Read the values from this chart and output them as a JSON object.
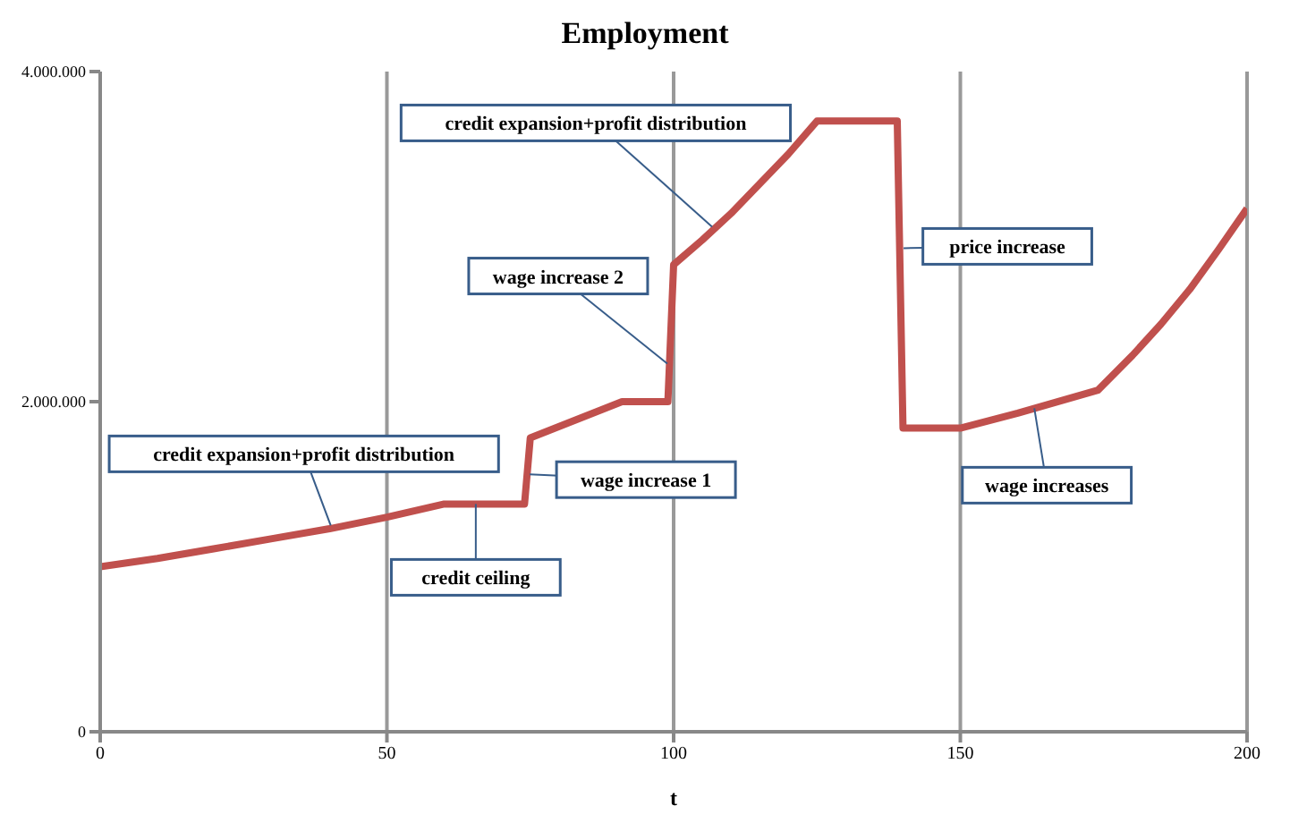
{
  "chart_data": {
    "type": "line",
    "title": "Employment",
    "xlabel": "t",
    "x": [
      0,
      10,
      20,
      30,
      40,
      50,
      60,
      74,
      75,
      91,
      99,
      100,
      105,
      110,
      115,
      120,
      125,
      139,
      140,
      150,
      160,
      174,
      180,
      185,
      190,
      195,
      200
    ],
    "series": [
      {
        "color": "#c0504d",
        "values": [
          1000000,
          1050000,
          1110000,
          1170000,
          1230000,
          1300000,
          1380000,
          1380000,
          1780000,
          2000000,
          2000000,
          2830000,
          2980000,
          3140000,
          3320000,
          3500000,
          3700000,
          3700000,
          1840000,
          1840000,
          1930000,
          2070000,
          2280000,
          2470000,
          2680000,
          2920000,
          3170000
        ]
      }
    ],
    "xlim": [
      0,
      200
    ],
    "xticks": [
      0,
      50,
      100,
      150,
      200
    ],
    "ylim": [
      0,
      4000000
    ],
    "yticks": [
      0,
      {
        "value": 2000000,
        "label": "2.000.000"
      },
      {
        "value": 4000000,
        "label": "4.000.000"
      }
    ],
    "grid": "x",
    "legend": false,
    "marker": "none",
    "line_style": "solid",
    "annotations": [
      {
        "text": "credit expansion+profit distribution",
        "x": 40.2,
        "y": 1250000
      },
      {
        "text": "credit ceiling",
        "x": 65.5,
        "y": 1380000
      },
      {
        "text": "wage increase 1",
        "x": 74.9,
        "y": 1560000
      },
      {
        "text": "wage increase 2",
        "x": 98.9,
        "y": 2230000
      },
      {
        "text": "credit expansion+profit distribution",
        "x": 106.7,
        "y": 3060000
      },
      {
        "text": "price increase",
        "x": 140.1,
        "y": 2930000
      },
      {
        "text": "wage increases",
        "x": 162.9,
        "y": 1960000
      }
    ]
  }
}
